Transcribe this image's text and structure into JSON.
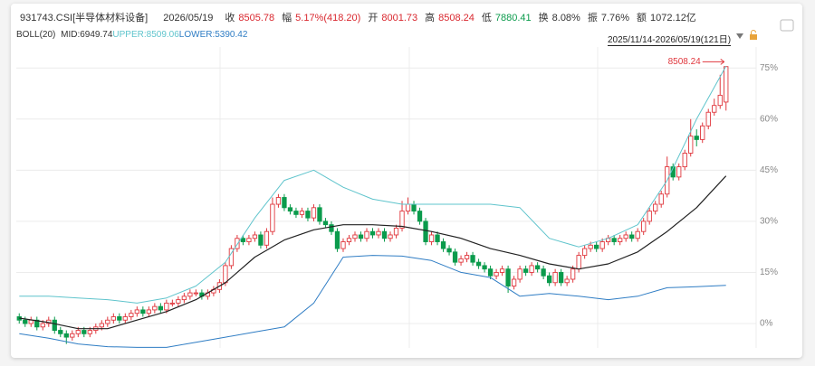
{
  "header": {
    "code": "931743.CSI[半导体材料设备]",
    "date": "2026/05/19",
    "fields": [
      {
        "label": "收",
        "value": "8505.78",
        "color": "#d9272e"
      },
      {
        "label": "幅",
        "value": "5.17%(418.20)",
        "color": "#d9272e"
      },
      {
        "label": "开",
        "value": "8001.73",
        "color": "#d9272e"
      },
      {
        "label": "高",
        "value": "8508.24",
        "color": "#d9272e"
      },
      {
        "label": "低",
        "value": "7880.41",
        "color": "#0b9b4c"
      },
      {
        "label": "换",
        "value": "8.08%",
        "color": "#333333"
      },
      {
        "label": "振",
        "value": "7.76%",
        "color": "#333333"
      },
      {
        "label": "额",
        "value": "1072.12亿",
        "color": "#333333"
      }
    ],
    "indicator": "BOLL(20)",
    "range": "2025/11/14-2026/05/19(121日)"
  },
  "chart_data": {
    "type": "candlestick",
    "up_color": "#e0383e",
    "down_color": "#0b9b4c",
    "open": [
      2,
      1,
      0,
      1,
      -1,
      0,
      1,
      -2,
      -3,
      -4,
      -3,
      -2,
      -3,
      -2,
      -1,
      0,
      1,
      2,
      1,
      2,
      3,
      4,
      3,
      4,
      5,
      4,
      6,
      6,
      7,
      8,
      9,
      9,
      8,
      9,
      10,
      12,
      17,
      22,
      25,
      24,
      25,
      26,
      23,
      27,
      35,
      37,
      34,
      33,
      32,
      33,
      31,
      34,
      30,
      29,
      27,
      22,
      24,
      25,
      26,
      25,
      27,
      26,
      27,
      25,
      26,
      28,
      33,
      35,
      33,
      30,
      24,
      26,
      24,
      22,
      21,
      18,
      19,
      20,
      18,
      17,
      16,
      14,
      15,
      16,
      11,
      13,
      16,
      15,
      17,
      16,
      14,
      12,
      15,
      12,
      13,
      16,
      20,
      22,
      23,
      22,
      24,
      25,
      24,
      25,
      26,
      25,
      27,
      30,
      33,
      35,
      38,
      46,
      43,
      46,
      50,
      55,
      54,
      58,
      62,
      64,
      65
    ],
    "high": [
      3,
      2,
      2,
      2,
      1,
      2,
      2,
      -1,
      -2,
      -2,
      -1,
      -1,
      -1,
      0,
      1,
      2,
      3,
      3,
      3,
      4,
      5,
      5,
      5,
      6,
      6,
      7,
      7,
      8,
      9,
      10,
      10,
      10,
      10,
      11,
      13,
      18,
      23,
      26,
      26,
      26,
      27,
      27,
      28,
      37,
      38,
      38,
      35,
      34,
      34,
      34,
      35,
      35,
      31,
      30,
      28,
      25,
      26,
      27,
      27,
      28,
      28,
      28,
      28,
      27,
      29,
      36,
      37,
      36,
      34,
      31,
      27,
      27,
      25,
      23,
      22,
      20,
      21,
      21,
      19,
      18,
      17,
      16,
      17,
      17,
      14,
      17,
      17,
      18,
      18,
      17,
      15,
      16,
      16,
      14,
      17,
      21,
      23,
      24,
      24,
      25,
      26,
      26,
      26,
      27,
      27,
      28,
      31,
      34,
      36,
      39,
      49,
      47,
      47,
      51,
      60,
      57,
      59,
      63,
      66,
      73,
      75.5
    ],
    "low": [
      0,
      -1,
      -1,
      -2,
      -2,
      -1,
      -3,
      -4,
      -6,
      -5,
      -4,
      -4,
      -4,
      -3,
      -2,
      -1,
      0,
      0,
      0,
      1,
      2,
      2,
      2,
      3,
      3,
      3,
      5,
      5,
      6,
      7,
      8,
      7,
      7,
      8,
      9,
      11,
      16,
      21,
      23,
      23,
      24,
      22,
      22,
      26,
      34,
      33,
      32,
      31,
      31,
      30,
      30,
      29,
      28,
      26,
      21,
      21,
      23,
      24,
      24,
      24,
      25,
      25,
      24,
      24,
      25,
      27,
      32,
      32,
      29,
      23,
      23,
      23,
      21,
      20,
      17,
      17,
      18,
      17,
      16,
      15,
      13,
      13,
      14,
      9,
      10,
      12,
      14,
      14,
      15,
      13,
      11,
      11,
      11,
      11,
      12,
      15,
      19,
      21,
      21,
      21,
      23,
      23,
      23,
      24,
      24,
      24,
      26,
      29,
      32,
      34,
      37,
      42,
      42,
      45,
      49,
      52,
      53,
      57,
      61,
      63,
      62.5
    ],
    "close": [
      1,
      0,
      1,
      -1,
      0,
      1,
      -2,
      -3,
      -4,
      -3,
      -2,
      -3,
      -2,
      -1,
      0,
      1,
      2,
      1,
      2,
      3,
      4,
      3,
      4,
      5,
      4,
      6,
      6,
      7,
      8,
      9,
      9,
      8,
      9,
      10,
      12,
      17,
      22,
      25,
      24,
      25,
      26,
      23,
      27,
      35,
      37,
      34,
      33,
      32,
      33,
      31,
      34,
      30,
      29,
      27,
      22,
      24,
      25,
      26,
      25,
      27,
      26,
      27,
      25,
      26,
      28,
      33,
      35,
      33,
      30,
      24,
      26,
      24,
      22,
      21,
      18,
      19,
      20,
      18,
      17,
      16,
      14,
      15,
      16,
      11,
      13,
      16,
      15,
      17,
      16,
      14,
      12,
      15,
      12,
      13,
      16,
      20,
      22,
      23,
      22,
      24,
      25,
      24,
      25,
      26,
      25,
      27,
      30,
      33,
      35,
      38,
      46,
      43,
      46,
      50,
      55,
      54,
      58,
      62,
      64,
      67,
      75.4
    ],
    "bands": [
      {
        "name": "MID:6949.74",
        "color": "#222222",
        "x": [
          0,
          5,
          10,
          15,
          20,
          25,
          30,
          35,
          40,
          45,
          50,
          55,
          60,
          65,
          70,
          75,
          80,
          85,
          90,
          95,
          100,
          105,
          110,
          115,
          120
        ],
        "values": [
          1.6,
          0.3,
          -1.5,
          -1.5,
          1,
          3.5,
          7,
          12,
          19.5,
          24.5,
          27.5,
          29,
          29,
          28.5,
          27,
          25,
          22,
          20,
          17.5,
          16,
          17.5,
          21,
          27,
          34,
          43.3
        ]
      },
      {
        "name": "UPPER:8509.06",
        "color": "#5fc4cc",
        "x": [
          0,
          5,
          10,
          15,
          20,
          25,
          30,
          35,
          40,
          45,
          50,
          55,
          60,
          65,
          70,
          75,
          80,
          85,
          90,
          95,
          100,
          105,
          110,
          115,
          120
        ],
        "values": [
          8,
          8,
          7.5,
          7,
          6,
          7.5,
          11,
          18,
          31,
          42,
          45,
          40,
          36.5,
          35,
          35,
          35,
          35,
          34,
          25,
          22.5,
          25,
          29,
          42,
          60,
          75.5
        ]
      },
      {
        "name": "LOWER:5390.42",
        "color": "#2f7dc4",
        "x": [
          0,
          5,
          10,
          15,
          20,
          25,
          30,
          35,
          40,
          45,
          50,
          55,
          60,
          65,
          70,
          75,
          80,
          85,
          90,
          95,
          100,
          105,
          110,
          115,
          120
        ],
        "values": [
          -3,
          -4.3,
          -6,
          -6.8,
          -7,
          -7,
          -5.5,
          -4,
          -2.5,
          -1,
          6,
          19.5,
          20,
          19.8,
          18.5,
          15,
          13.5,
          8,
          8.8,
          8,
          7,
          8,
          10.5,
          10.8,
          11.2
        ]
      }
    ],
    "annotation": "8508.24",
    "ylim": [
      -7,
      81
    ],
    "yticks": [
      {
        "value": 0,
        "label": "0%"
      },
      {
        "value": 15,
        "label": "15%"
      },
      {
        "value": 30,
        "label": "30%"
      },
      {
        "value": 45,
        "label": "45%"
      },
      {
        "value": 60,
        "label": "60%"
      },
      {
        "value": 75,
        "label": "75%"
      }
    ],
    "grid": true
  }
}
